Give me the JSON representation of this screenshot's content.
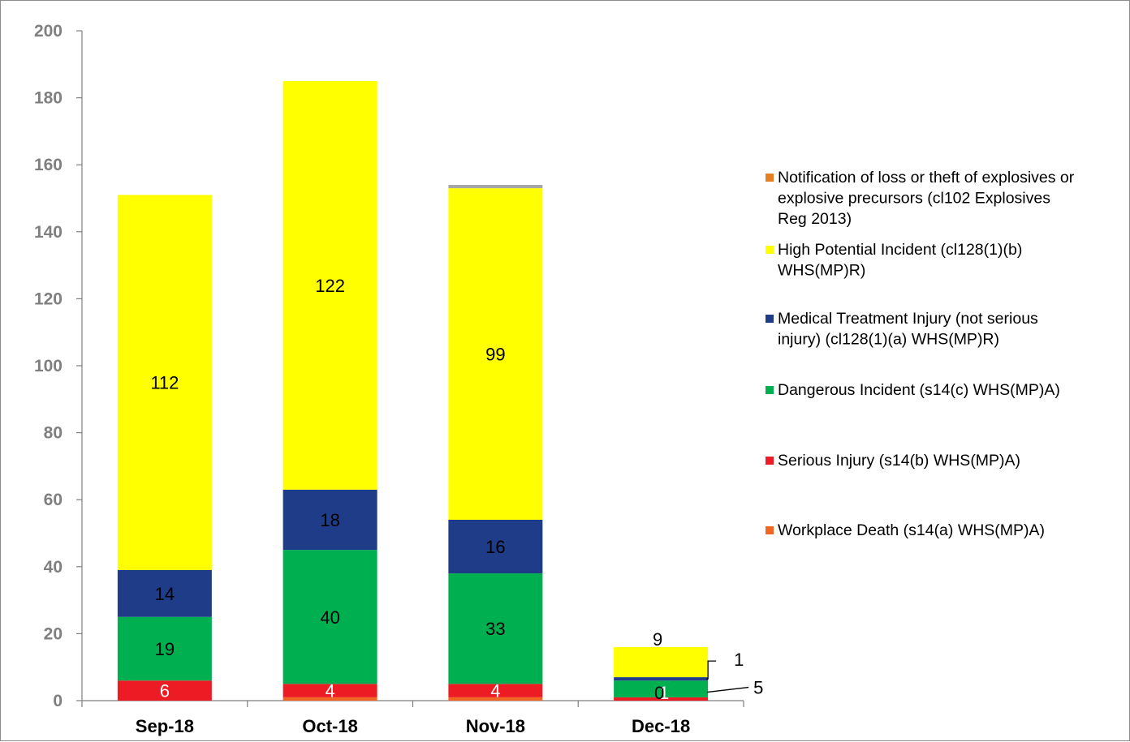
{
  "chart_data": {
    "type": "bar",
    "stacked": true,
    "categories": [
      "Sep-18",
      "Oct-18",
      "Nov-18",
      "Dec-18"
    ],
    "ylim": [
      0,
      200
    ],
    "yticks": [
      0,
      20,
      40,
      60,
      80,
      100,
      120,
      140,
      160,
      180,
      200
    ],
    "grid": false,
    "legend_position": "right",
    "series": [
      {
        "name": "Workplace Death (s14(a) WHS(MP)A)",
        "color": "#f26522",
        "values": [
          0,
          1,
          1,
          0
        ],
        "labels": [
          "",
          "",
          "",
          ""
        ]
      },
      {
        "name": "Serious Injury (s14(b) WHS(MP)A)",
        "color": "#ed1c24",
        "values": [
          6,
          4,
          4,
          1
        ],
        "labels": [
          "6",
          "4",
          "4",
          "1"
        ]
      },
      {
        "name": "Dangerous Incident (s14(c) WHS(MP)A)",
        "color": "#00b050",
        "values": [
          19,
          40,
          33,
          5
        ],
        "labels": [
          "19",
          "40",
          "33",
          "5"
        ]
      },
      {
        "name": "Medical Treatment Injury (not serious injury) (cl128(1)(a) WHS(MP)R)",
        "color": "#1f3c88",
        "values": [
          14,
          18,
          16,
          1
        ],
        "labels": [
          "14",
          "18",
          "16",
          "1"
        ]
      },
      {
        "name": "High Potential Incident (cl128(1)(b) WHS(MP)R)",
        "color": "#ffff00",
        "values": [
          112,
          122,
          99,
          9
        ],
        "labels": [
          "112",
          "122",
          "99",
          "9"
        ]
      },
      {
        "name": "Notification of loss or theft of explosives or explosive precursors (cl102 Explosives Reg 2013)",
        "color": "#a6a6a6",
        "values": [
          0,
          0,
          1,
          0
        ],
        "labels": [
          "",
          "",
          "",
          ""
        ]
      }
    ],
    "dec_zero_label": "0",
    "legend": [
      {
        "lines": [
          "Notification of loss or theft of explosives or",
          "explosive precursors (cl102 Explosives",
          "Reg 2013)"
        ],
        "color": "#e67e22"
      },
      {
        "lines": [
          "High Potential Incident (cl128(1)(b)",
          "WHS(MP)R)"
        ],
        "color": "#ffff00"
      },
      {
        "lines": [
          "Medical Treatment Injury (not serious",
          "injury) (cl128(1)(a) WHS(MP)R)"
        ],
        "color": "#1f3c88"
      },
      {
        "lines": [
          "Dangerous Incident (s14(c) WHS(MP)A)"
        ],
        "color": "#00b050"
      },
      {
        "lines": [
          "Serious Injury (s14(b) WHS(MP)A)"
        ],
        "color": "#ed1c24"
      },
      {
        "lines": [
          "Workplace Death (s14(a) WHS(MP)A)"
        ],
        "color": "#f26522"
      }
    ]
  }
}
